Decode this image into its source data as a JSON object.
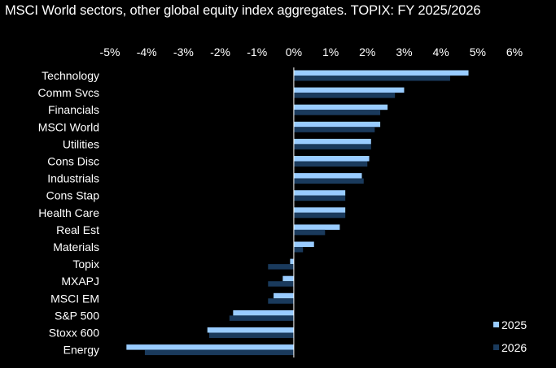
{
  "chart_data": {
    "type": "bar",
    "orientation": "horizontal",
    "title": "MSCI World sectors, other global equity index aggregates. TOPIX: FY 2025/2026",
    "xlabel": "",
    "ylabel": "",
    "xlim": [
      -5,
      6
    ],
    "x_ticks": [
      -5,
      -4,
      -3,
      -2,
      -1,
      0,
      1,
      2,
      3,
      4,
      5,
      6
    ],
    "x_tick_labels": [
      "-5%",
      "-4%",
      "-3%",
      "-2%",
      "-1%",
      "0%",
      "1%",
      "2%",
      "3%",
      "4%",
      "5%",
      "6%"
    ],
    "x_axis_position": "top",
    "grid": false,
    "legend_position": "bottom-right",
    "categories": [
      "Technology",
      "Comm Svcs",
      "Financials",
      "MSCI World",
      "Utilities",
      "Cons Disc",
      "Industrials",
      "Cons Stap",
      "Health Care",
      "Real Est",
      "Materials",
      "Topix",
      "MXAPJ",
      "MSCI EM",
      "S&P 500",
      "Stoxx 600",
      "Energy"
    ],
    "series": [
      {
        "name": "2025",
        "color": "#99ccff",
        "values": [
          4.75,
          3.0,
          2.55,
          2.35,
          2.1,
          2.05,
          1.85,
          1.4,
          1.4,
          1.25,
          0.55,
          -0.1,
          -0.3,
          -0.55,
          -1.65,
          -2.35,
          -4.55
        ]
      },
      {
        "name": "2026",
        "color": "#1a3a5c",
        "values": [
          4.25,
          2.75,
          2.35,
          2.2,
          2.1,
          2.0,
          1.9,
          1.4,
          1.4,
          0.85,
          0.25,
          -0.7,
          -0.7,
          -0.7,
          -1.75,
          -2.3,
          -4.05
        ]
      }
    ]
  }
}
